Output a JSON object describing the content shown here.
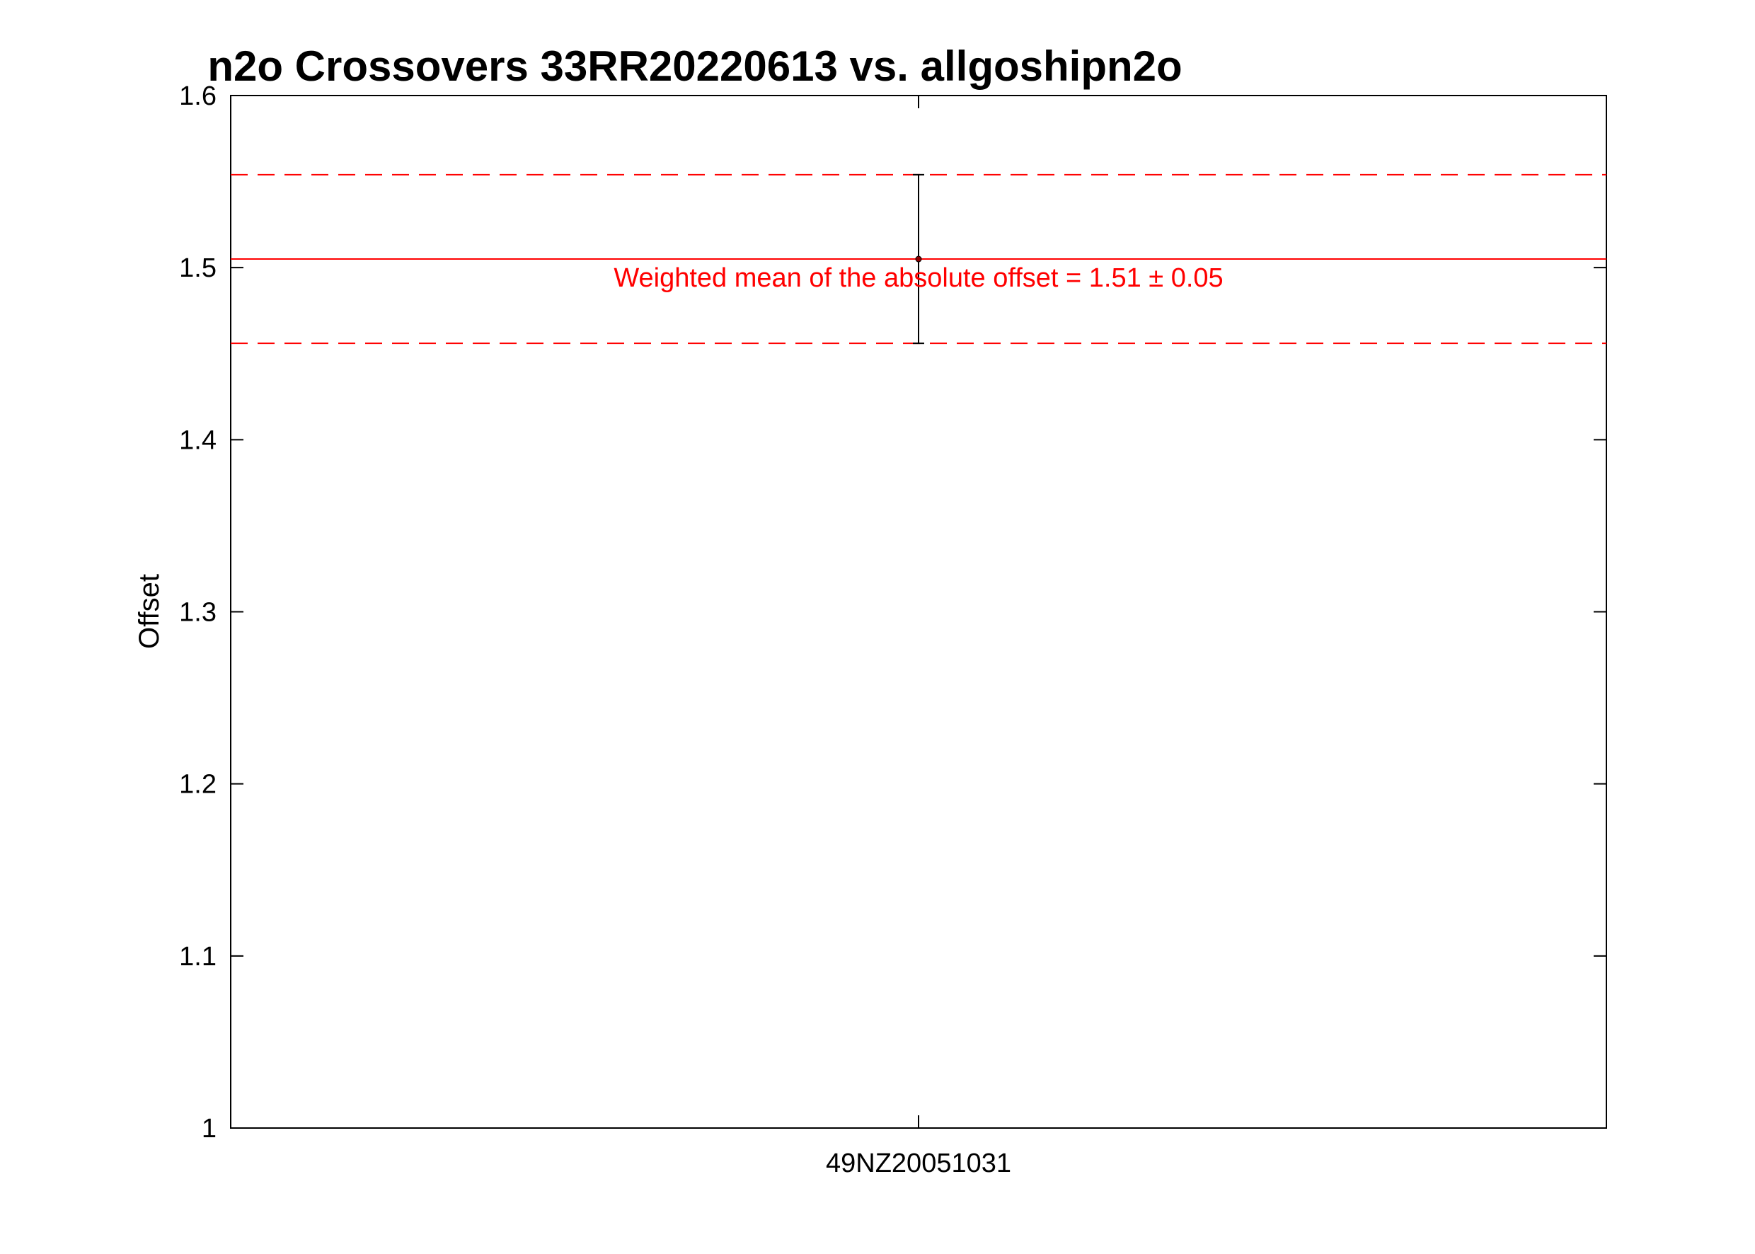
{
  "chart_data": {
    "type": "scatter",
    "title": "n2o Crossovers 33RR20220613 vs. allgoshipn2o",
    "xlabel": "",
    "ylabel": "Offset",
    "ylim": [
      1.0,
      1.6
    ],
    "y_ticks": [
      1.0,
      1.1,
      1.2,
      1.3,
      1.4,
      1.5,
      1.6
    ],
    "y_tick_labels": [
      "1",
      "1.1",
      "1.2",
      "1.3",
      "1.4",
      "1.5",
      "1.6"
    ],
    "categories": [
      "49NZ20051031"
    ],
    "grid": false,
    "legend": "none",
    "series": [
      {
        "values": [
          1.505
        ],
        "errors": [
          0.049
        ],
        "color": "#000000"
      }
    ],
    "reference_lines": {
      "mean": 1.505,
      "upper": 1.554,
      "lower": 1.456,
      "color": "#ff0000"
    },
    "annotation": {
      "text": "Weighted mean of the absolute offset = 1.51 ± 0.05",
      "color": "#ff0000"
    }
  }
}
